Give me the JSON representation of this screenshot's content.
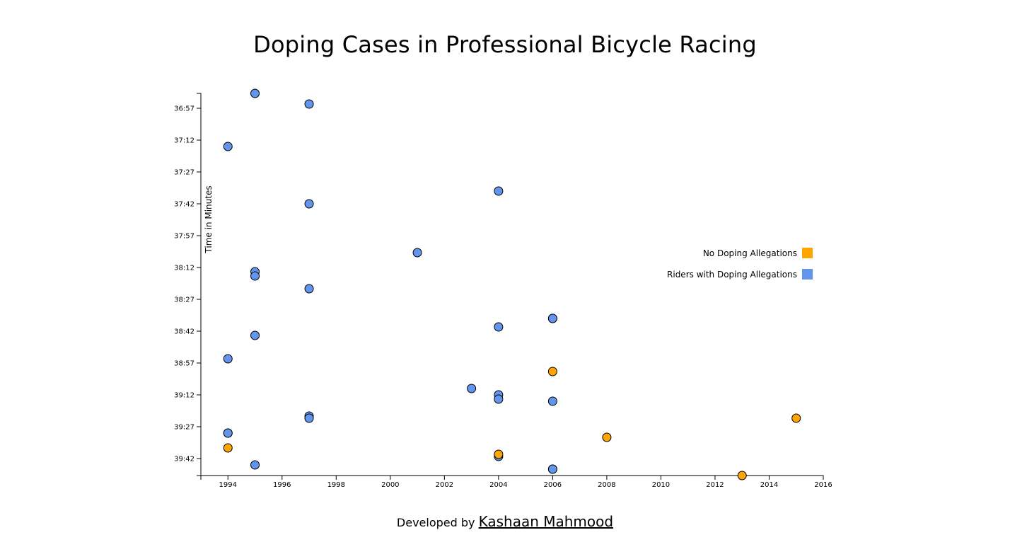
{
  "page": {
    "title": "Doping Cases in Professional Bicycle Racing",
    "footer_prefix": "Developed by ",
    "footer_author": "Kashaan Mahmood"
  },
  "chart_data": {
    "type": "scatter",
    "title": "Doping Cases in Professional Bicycle Racing",
    "xlabel": "",
    "ylabel": "Time in Minutes",
    "xlim": [
      1993,
      2016
    ],
    "ylim_seconds": [
      2210,
      2390
    ],
    "y_inverted": true,
    "x_ticks": [
      1994,
      1996,
      1998,
      2000,
      2002,
      2004,
      2006,
      2008,
      2010,
      2012,
      2014,
      2016
    ],
    "y_ticks": [
      "36:57",
      "37:12",
      "37:27",
      "37:42",
      "37:57",
      "38:12",
      "38:27",
      "38:42",
      "38:57",
      "39:12",
      "39:27",
      "39:42"
    ],
    "grid": false,
    "legend_position": "right",
    "legend": [
      {
        "label": "No Doping Allegations",
        "color": "#FFA500"
      },
      {
        "label": "Riders with Doping Allegations",
        "color": "#6495ED"
      }
    ],
    "series": [
      {
        "name": "Riders with Doping Allegations",
        "color": "#6495ED",
        "points": [
          {
            "year": 1995,
            "time": "36:50"
          },
          {
            "year": 1997,
            "time": "36:55"
          },
          {
            "year": 1994,
            "time": "37:15"
          },
          {
            "year": 2004,
            "time": "37:36"
          },
          {
            "year": 1997,
            "time": "37:42"
          },
          {
            "year": 2001,
            "time": "38:05"
          },
          {
            "year": 1995,
            "time": "38:14"
          },
          {
            "year": 1995,
            "time": "38:16"
          },
          {
            "year": 1997,
            "time": "38:22"
          },
          {
            "year": 2006,
            "time": "38:36"
          },
          {
            "year": 2006,
            "time": "38:36"
          },
          {
            "year": 2004,
            "time": "38:40"
          },
          {
            "year": 1995,
            "time": "38:44"
          },
          {
            "year": 1994,
            "time": "38:55"
          },
          {
            "year": 2003,
            "time": "39:09"
          },
          {
            "year": 2004,
            "time": "39:12"
          },
          {
            "year": 2004,
            "time": "39:14"
          },
          {
            "year": 2006,
            "time": "39:15"
          },
          {
            "year": 1997,
            "time": "39:22"
          },
          {
            "year": 1997,
            "time": "39:23"
          },
          {
            "year": 1994,
            "time": "39:30"
          },
          {
            "year": 1994,
            "time": "39:30"
          },
          {
            "year": 2004,
            "time": "39:41"
          },
          {
            "year": 1995,
            "time": "39:45"
          },
          {
            "year": 2006,
            "time": "39:47"
          },
          {
            "year": 2006,
            "time": "39:47"
          }
        ]
      },
      {
        "name": "No Doping Allegations",
        "color": "#FFA500",
        "points": [
          {
            "year": 2006,
            "time": "39:01"
          },
          {
            "year": 2015,
            "time": "39:23"
          },
          {
            "year": 2008,
            "time": "39:32"
          },
          {
            "year": 1994,
            "time": "39:37"
          },
          {
            "year": 2004,
            "time": "39:40"
          },
          {
            "year": 2013,
            "time": "39:50"
          }
        ]
      }
    ]
  }
}
